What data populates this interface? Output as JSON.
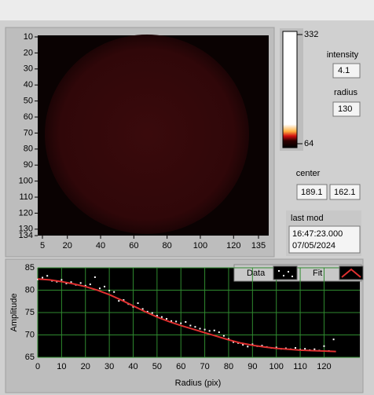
{
  "image_display": {
    "xlim": [
      5,
      135
    ],
    "ylim": [
      10,
      134
    ],
    "xticks": [
      5,
      20,
      40,
      60,
      80,
      100,
      120,
      135
    ],
    "yticks": [
      10,
      20,
      30,
      40,
      50,
      60,
      70,
      80,
      90,
      100,
      110,
      120,
      130,
      134
    ]
  },
  "colorbar": {
    "max": 332,
    "min": 64
  },
  "indicators": {
    "intensity": {
      "label": "intensity",
      "value": "4.1"
    },
    "radius": {
      "label": "radius",
      "value": "130"
    },
    "center": {
      "label": "center",
      "values": [
        "189.1",
        "162.1"
      ]
    },
    "last_mod": {
      "label": "last mod",
      "lines": [
        "16:47:23.000",
        "07/05/2024"
      ]
    }
  },
  "chart_data": {
    "type": "scatter",
    "xlabel": "Radius (pix)",
    "ylabel": "Amplitude",
    "grid": true,
    "xlim": [
      0,
      135
    ],
    "ylim": [
      65,
      85
    ],
    "xticks": [
      0,
      10,
      20,
      30,
      40,
      50,
      60,
      70,
      80,
      90,
      100,
      110,
      120
    ],
    "yticks": [
      65,
      70,
      75,
      80,
      85
    ],
    "series": [
      {
        "name": "Data",
        "color": "#ffffff",
        "style": "markers",
        "x": [
          0,
          2,
          4,
          6,
          8,
          10,
          12,
          14,
          16,
          18,
          20,
          22,
          24,
          26,
          28,
          30,
          32,
          34,
          36,
          38,
          40,
          42,
          44,
          46,
          48,
          50,
          52,
          54,
          56,
          58,
          60,
          62,
          64,
          66,
          68,
          70,
          72,
          74,
          76,
          78,
          80,
          82,
          84,
          86,
          88,
          90,
          92,
          94,
          96,
          98,
          100,
          102,
          104,
          106,
          108,
          110,
          112,
          114,
          116,
          118,
          120,
          122,
          124
        ],
        "values": [
          82.4,
          82.8,
          83.2,
          82.1,
          81.9,
          82.3,
          81.5,
          81.8,
          81.2,
          81.6,
          81.0,
          81.3,
          82.9,
          80.4,
          80.8,
          79.9,
          79.6,
          77.6,
          77.8,
          76.9,
          76.3,
          77.1,
          75.8,
          75.2,
          74.9,
          74.3,
          74.0,
          73.6,
          73.1,
          73.0,
          72.6,
          72.9,
          72.1,
          71.8,
          71.4,
          71.2,
          70.9,
          71.0,
          70.6,
          69.8,
          69.1,
          68.4,
          68.2,
          67.8,
          67.4,
          67.9,
          67.5,
          67.6,
          67.3,
          67.1,
          67.2,
          66.9,
          67.0,
          66.8,
          67.1,
          66.7,
          66.9,
          66.6,
          66.8,
          66.5,
          67.5,
          66.4,
          69.0
        ]
      },
      {
        "name": "Fit",
        "color": "#e03030",
        "style": "line",
        "x": [
          0,
          5,
          10,
          15,
          20,
          25,
          30,
          35,
          40,
          45,
          50,
          55,
          60,
          65,
          70,
          75,
          80,
          85,
          90,
          95,
          100,
          105,
          110,
          115,
          120,
          125
        ],
        "values": [
          82.5,
          82.3,
          81.9,
          81.4,
          80.8,
          80.0,
          79.0,
          77.8,
          76.5,
          75.2,
          74.0,
          73.0,
          72.1,
          71.3,
          70.5,
          69.7,
          68.9,
          68.2,
          67.7,
          67.3,
          67.0,
          66.8,
          66.6,
          66.5,
          66.4,
          66.3
        ]
      }
    ]
  }
}
